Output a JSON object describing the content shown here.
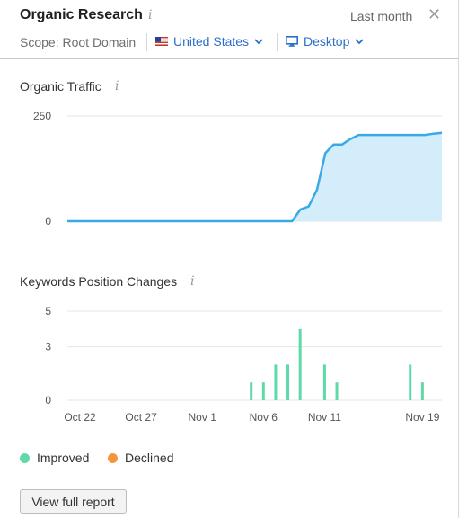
{
  "header": {
    "title": "Organic Research",
    "period": "Last month",
    "scope_label": "Scope: Root Domain",
    "country": "United States",
    "device": "Desktop"
  },
  "info_glyph": "i",
  "close_glyph": "✕",
  "colors": {
    "accent": "#2a6fc9",
    "traffic_line": "#3aa9e8",
    "traffic_fill": "#d4edfb",
    "improved": "#5fd9a8",
    "declined": "#f5943a"
  },
  "organic_traffic": {
    "title": "Organic Traffic"
  },
  "keywords": {
    "title": "Keywords Position Changes"
  },
  "legend": {
    "improved": "Improved",
    "declined": "Declined"
  },
  "button": {
    "label": "View full report"
  },
  "chart_data": [
    {
      "type": "area",
      "title": "Organic Traffic",
      "ylim": [
        0,
        250
      ],
      "yticks": [
        "250",
        "0"
      ],
      "grid": true,
      "series": [
        {
          "values": [
            0,
            0,
            0,
            0,
            0,
            0,
            0,
            0,
            0,
            0,
            0,
            0,
            0,
            0,
            0,
            0,
            0,
            0,
            0,
            0,
            0,
            0,
            0,
            0,
            0,
            0,
            0,
            0,
            28,
            35,
            75,
            162,
            182,
            182,
            195,
            205,
            205,
            205,
            205,
            205,
            205,
            205,
            205,
            205,
            208,
            210
          ]
        }
      ]
    },
    {
      "type": "bar",
      "title": "Keywords Position Changes",
      "ylim": [
        0,
        5
      ],
      "yticks": [
        "5",
        "3",
        "0"
      ],
      "xticks": [
        "Oct 22",
        "Oct 27",
        "Nov 1",
        "Nov 6",
        "Nov 11",
        "Nov 19"
      ],
      "grid": true,
      "categories": [
        "Oct 22",
        "Oct 23",
        "Oct 24",
        "Oct 25",
        "Oct 26",
        "Oct 27",
        "Oct 28",
        "Oct 29",
        "Oct 30",
        "Oct 31",
        "Nov 1",
        "Nov 2",
        "Nov 3",
        "Nov 4",
        "Nov 5",
        "Nov 6",
        "Nov 7",
        "Nov 8",
        "Nov 9",
        "Nov 10",
        "Nov 11",
        "Nov 12",
        "Nov 13",
        "Nov 14",
        "Nov 15",
        "Nov 16",
        "Nov 17",
        "Nov 18",
        "Nov 19",
        "Nov 20"
      ],
      "series": [
        {
          "name": "Improved",
          "values": [
            0,
            0,
            0,
            0,
            0,
            0,
            0,
            0,
            0,
            0,
            0,
            0,
            0,
            0,
            1,
            1,
            2,
            2,
            4,
            0,
            2,
            1,
            0,
            0,
            0,
            0,
            0,
            2,
            1,
            0
          ]
        },
        {
          "name": "Declined",
          "values": [
            0,
            0,
            0,
            0,
            0,
            0,
            0,
            0,
            0,
            0,
            0,
            0,
            0,
            0,
            0,
            0,
            0,
            0,
            0,
            0,
            0,
            0,
            0,
            0,
            0,
            0,
            0,
            0,
            0,
            0
          ]
        }
      ]
    }
  ]
}
